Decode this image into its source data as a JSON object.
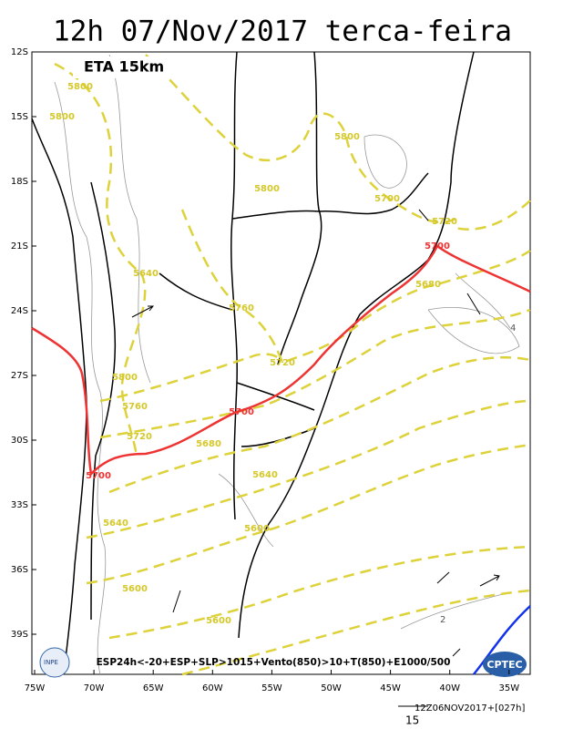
{
  "header": {
    "title": "12h 07/Nov/2017 terca-feira",
    "model": "ETA 15km"
  },
  "map": {
    "lat_labels": [
      "12S",
      "15S",
      "18S",
      "21S",
      "24S",
      "27S",
      "30S",
      "33S",
      "36S",
      "39S"
    ],
    "lon_labels": [
      "75W",
      "70W",
      "65W",
      "60W",
      "55W",
      "50W",
      "45W",
      "40W",
      "35W"
    ],
    "contour_labels": [
      "5800",
      "5800",
      "5800",
      "5800",
      "5700",
      "5720",
      "5700",
      "5680",
      "5640",
      "5760",
      "5720",
      "5800",
      "5760",
      "5720",
      "5700",
      "5680",
      "5700",
      "5640",
      "5600",
      "5640",
      "5600",
      "5600"
    ],
    "isobar_labels": [
      "4",
      "2"
    ],
    "legend": "ESP24h<-20+ESP+SLP>1015+Vento(850)>10+T(850)+E1000/500"
  },
  "logos": {
    "left": "INPE",
    "right": "CPTEC"
  },
  "footer": {
    "run": "12Z06NOV2017+[027h]",
    "scale": "15"
  }
}
